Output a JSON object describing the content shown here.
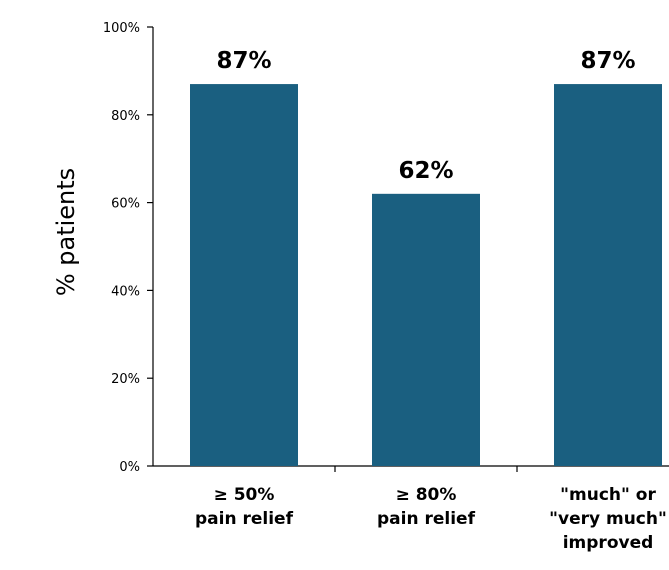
{
  "chart_data": {
    "type": "bar",
    "title": "",
    "xlabel": "",
    "ylabel": "% patients",
    "ylim": [
      0,
      100
    ],
    "yticks": [
      0,
      20,
      40,
      60,
      80,
      100
    ],
    "ytick_labels": [
      "0%",
      "20%",
      "40%",
      "60%",
      "80%",
      "100%"
    ],
    "categories": [
      [
        "≥ 50%",
        "pain relief"
      ],
      [
        "≥ 80%",
        "pain relief"
      ],
      [
        "\"much\" or",
        "\"very much\"",
        "improved"
      ]
    ],
    "values": [
      87,
      62,
      87
    ],
    "data_labels": [
      "87%",
      "62%",
      "87%"
    ],
    "grid": false,
    "legend": "none",
    "colors": {
      "bar": "#1a5f80",
      "axis": "#000000"
    }
  }
}
